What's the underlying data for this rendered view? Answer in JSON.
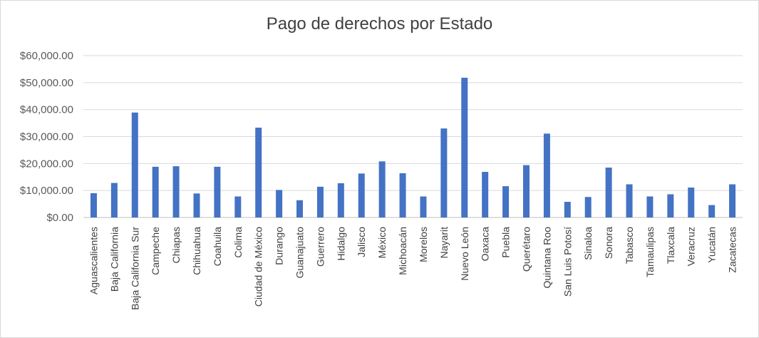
{
  "chart_data": {
    "type": "bar",
    "title": "Pago de derechos  por Estado",
    "xlabel": "",
    "ylabel": "",
    "ylim": [
      0,
      60000
    ],
    "yticks": [
      0,
      10000,
      20000,
      30000,
      40000,
      50000,
      60000
    ],
    "ytick_labels": [
      "$0.00",
      "$10,000.00",
      "$20,000.00",
      "$30,000.00",
      "$40,000.00",
      "$50,000.00",
      "$60,000.00"
    ],
    "grid": true,
    "legend": "none",
    "bar_color": "#4472c4",
    "categories": [
      "Aguascalientes",
      "Baja California",
      "Baja California Sur",
      "Campeche",
      "Chiapas",
      "Chihuahua",
      "Coahuila",
      "Colima",
      "Ciudad de México",
      "Durango",
      "Guanajuato",
      "Guerrero",
      "Hidalgo",
      "Jalisco",
      "México",
      "Michoacán",
      "Morelos",
      "Nayarit",
      "Nuevo León",
      "Oaxaca",
      "Puebla",
      "Querétaro",
      "Quintana Roo",
      "San Luis Potosí",
      "Sinaloa",
      "Sonora",
      "Tabasco",
      "Tamaulipas",
      "Tlaxcala",
      "Veracruz",
      "Yucatán",
      "Zacatecas"
    ],
    "values": [
      9000,
      12800,
      38900,
      18800,
      19000,
      8900,
      18800,
      7800,
      33300,
      10200,
      6400,
      11400,
      12700,
      16300,
      20800,
      16400,
      7800,
      33000,
      51800,
      16900,
      11600,
      19400,
      31100,
      5800,
      7600,
      18500,
      12300,
      7800,
      8600,
      11100,
      4600,
      12300
    ]
  }
}
